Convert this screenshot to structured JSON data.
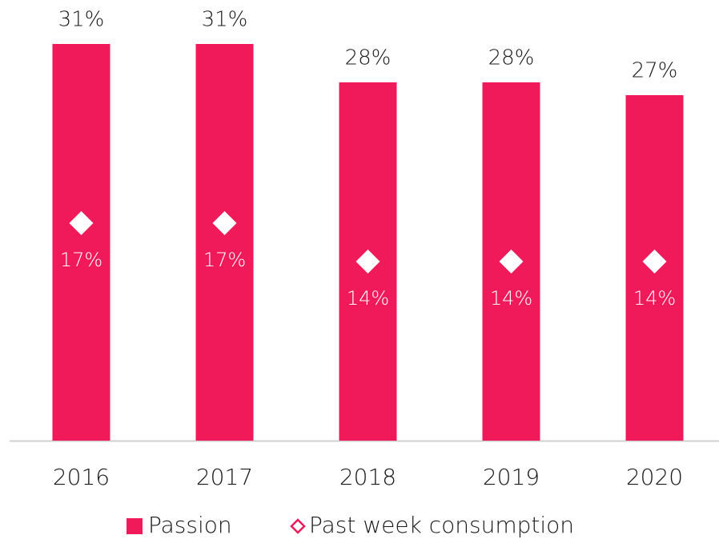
{
  "chart_data": {
    "type": "bar",
    "categories": [
      "2016",
      "2017",
      "2018",
      "2019",
      "2020"
    ],
    "series": [
      {
        "name": "Passion",
        "type": "bar",
        "color": "#f0195a",
        "values": [
          31,
          31,
          28,
          28,
          27
        ],
        "value_labels": [
          "31%",
          "31%",
          "28%",
          "28%",
          "27%"
        ]
      },
      {
        "name": "Past week consumption",
        "type": "scatter",
        "marker": "diamond",
        "color": "#ffffff",
        "values": [
          17,
          17,
          14,
          14,
          14
        ],
        "value_labels": [
          "17%",
          "17%",
          "14%",
          "14%",
          "14%"
        ]
      }
    ],
    "legend": "bottom"
  }
}
